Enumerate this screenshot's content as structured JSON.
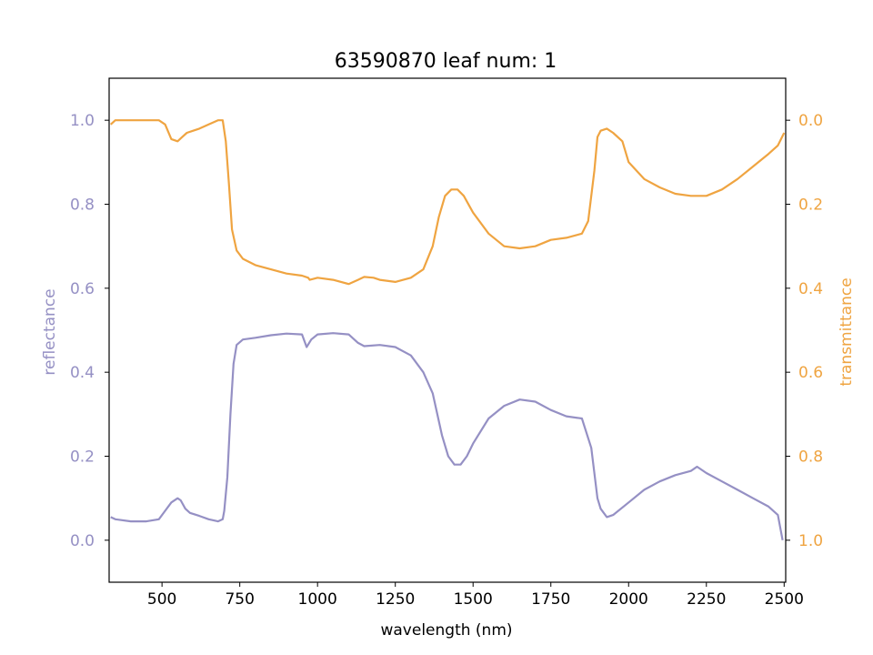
{
  "chart_data": {
    "type": "line",
    "title": "63590870 leaf num: 1",
    "xlabel": "wavelength (nm)",
    "ylabel_left": "reflectance",
    "ylabel_right": "transmittance",
    "xlim": [
      330,
      2505
    ],
    "ylim_left": [
      -0.1,
      1.1
    ],
    "ylim_right": [
      1.1,
      -0.1
    ],
    "right_axis_inverted": true,
    "grid": false,
    "x_ticks": [
      500,
      750,
      1000,
      1250,
      1500,
      1750,
      2000,
      2250,
      2500
    ],
    "x_tick_labels": [
      "500",
      "750",
      "1000",
      "1250",
      "1500",
      "1750",
      "2000",
      "2250",
      "2500"
    ],
    "left_ticks": [
      0.0,
      0.2,
      0.4,
      0.6,
      0.8,
      1.0
    ],
    "left_tick_labels": [
      "0.0",
      "0.2",
      "0.4",
      "0.6",
      "0.8",
      "1.0"
    ],
    "right_ticks": [
      0.0,
      0.2,
      0.4,
      0.6,
      0.8,
      1.0
    ],
    "right_tick_labels": [
      "0.0",
      "0.2",
      "0.4",
      "0.6",
      "0.8",
      "1.0"
    ],
    "colors": {
      "reflectance": "#9590c4",
      "transmittance": "#efa441",
      "axes": "#000000"
    },
    "series": [
      {
        "key": "reflectance",
        "axis": "left",
        "x": [
          335,
          350,
          400,
          450,
          490,
          510,
          530,
          550,
          560,
          575,
          590,
          620,
          650,
          680,
          695,
          700,
          710,
          720,
          730,
          740,
          760,
          800,
          850,
          900,
          950,
          965,
          980,
          1000,
          1050,
          1100,
          1130,
          1150,
          1200,
          1250,
          1300,
          1340,
          1370,
          1400,
          1420,
          1440,
          1460,
          1480,
          1500,
          1550,
          1600,
          1650,
          1700,
          1750,
          1800,
          1850,
          1880,
          1900,
          1910,
          1920,
          1930,
          1950,
          2000,
          2050,
          2100,
          2150,
          2200,
          2220,
          2250,
          2300,
          2350,
          2400,
          2450,
          2480,
          2495
        ],
        "y": [
          0.055,
          0.05,
          0.045,
          0.045,
          0.05,
          0.07,
          0.09,
          0.1,
          0.095,
          0.075,
          0.065,
          0.058,
          0.05,
          0.045,
          0.05,
          0.07,
          0.15,
          0.3,
          0.42,
          0.465,
          0.478,
          0.482,
          0.488,
          0.492,
          0.49,
          0.46,
          0.478,
          0.49,
          0.493,
          0.49,
          0.47,
          0.462,
          0.465,
          0.46,
          0.44,
          0.4,
          0.35,
          0.25,
          0.2,
          0.18,
          0.18,
          0.2,
          0.23,
          0.29,
          0.32,
          0.335,
          0.33,
          0.31,
          0.295,
          0.29,
          0.22,
          0.1,
          0.075,
          0.065,
          0.055,
          0.06,
          0.09,
          0.12,
          0.14,
          0.155,
          0.165,
          0.175,
          0.16,
          0.14,
          0.12,
          0.1,
          0.08,
          0.06,
          0.0
        ]
      },
      {
        "key": "transmittance",
        "axis": "right",
        "x": [
          335,
          350,
          400,
          450,
          490,
          510,
          530,
          550,
          565,
          580,
          600,
          620,
          650,
          680,
          695,
          705,
          715,
          725,
          740,
          760,
          800,
          850,
          900,
          950,
          970,
          975,
          985,
          1000,
          1050,
          1100,
          1130,
          1150,
          1180,
          1200,
          1250,
          1300,
          1340,
          1370,
          1390,
          1410,
          1430,
          1450,
          1470,
          1500,
          1550,
          1600,
          1650,
          1700,
          1750,
          1800,
          1850,
          1870,
          1890,
          1900,
          1910,
          1930,
          1950,
          1980,
          2000,
          2050,
          2100,
          2150,
          2200,
          2250,
          2300,
          2350,
          2400,
          2450,
          2480,
          2500
        ],
        "y": [
          0.01,
          0.0,
          0.0,
          0.0,
          0.0,
          0.01,
          0.045,
          0.05,
          0.04,
          0.03,
          0.025,
          0.02,
          0.01,
          0.0,
          0.0,
          0.05,
          0.15,
          0.26,
          0.31,
          0.33,
          0.345,
          0.355,
          0.365,
          0.37,
          0.375,
          0.38,
          0.378,
          0.375,
          0.38,
          0.39,
          0.38,
          0.373,
          0.375,
          0.38,
          0.385,
          0.375,
          0.355,
          0.3,
          0.23,
          0.18,
          0.165,
          0.165,
          0.18,
          0.22,
          0.27,
          0.3,
          0.305,
          0.3,
          0.285,
          0.28,
          0.27,
          0.24,
          0.12,
          0.04,
          0.025,
          0.02,
          0.03,
          0.05,
          0.1,
          0.14,
          0.16,
          0.175,
          0.18,
          0.18,
          0.165,
          0.14,
          0.11,
          0.08,
          0.06,
          0.03
        ]
      }
    ]
  }
}
